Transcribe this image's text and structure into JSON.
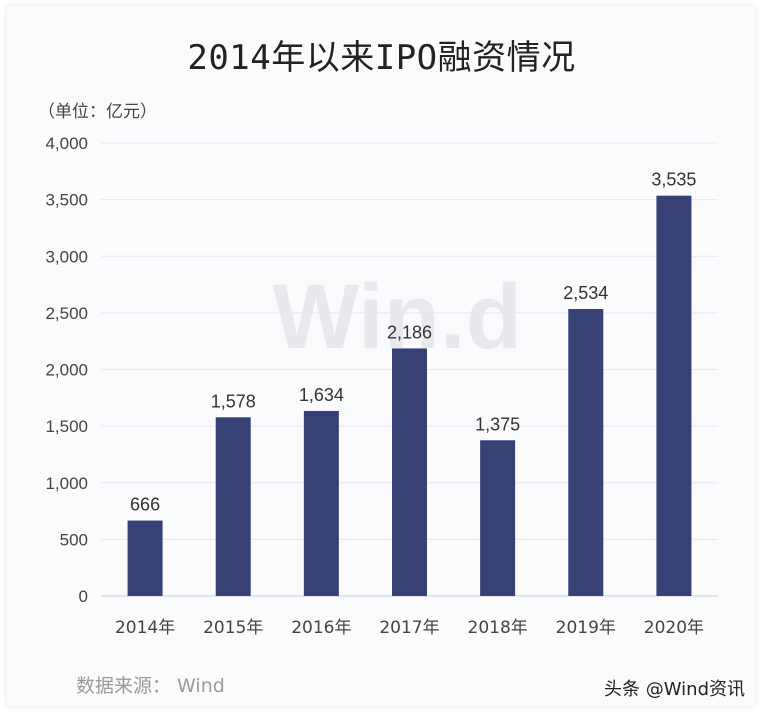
{
  "chart_data": {
    "type": "bar",
    "title": "2014年以来IPO融资情况",
    "unit_label": "（单位：亿元）",
    "categories": [
      "2014年",
      "2015年",
      "2016年",
      "2017年",
      "2018年",
      "2019年",
      "2020年"
    ],
    "values": [
      666,
      1578,
      1634,
      2186,
      1375,
      2534,
      3535
    ],
    "value_labels": [
      "666",
      "1,578",
      "1,634",
      "2,186",
      "1,375",
      "2,534",
      "3,535"
    ],
    "yticks": [
      "0",
      "500",
      "1,000",
      "1,500",
      "2,000",
      "2,500",
      "3,000",
      "3,500",
      "4,000"
    ],
    "ylim": [
      0,
      4000
    ],
    "grid": true,
    "bar_color": "#364175"
  },
  "watermark": "Win.d",
  "source": "数据来源：  Wind",
  "credit": "头条 @Wind资讯"
}
